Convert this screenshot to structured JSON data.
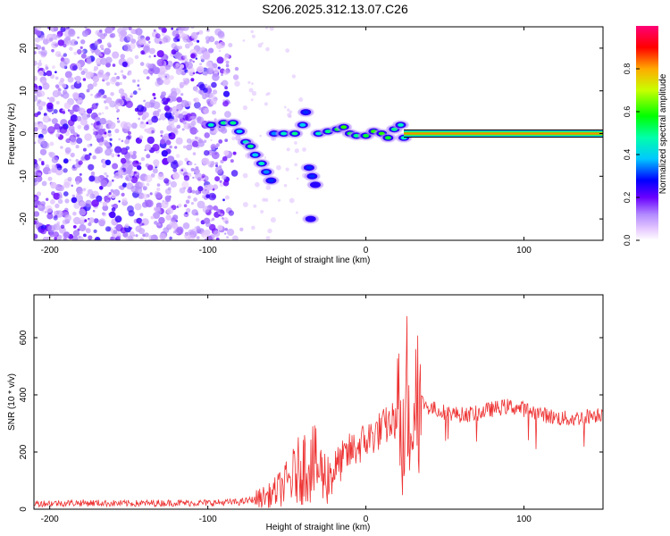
{
  "title": "S206.2025.312.13.07.C26",
  "chart_data": [
    {
      "type": "heatmap",
      "xlabel": "Height of straight line (km)",
      "ylabel": "Frequency (Hz)",
      "xlim": [
        -210,
        150
      ],
      "ylim": [
        -25,
        25
      ],
      "xticks": [
        -200,
        -100,
        0,
        100
      ],
      "yticks": [
        -20,
        -10,
        0,
        10,
        20
      ],
      "xtick_labels": [
        "-200",
        "-100",
        "0",
        "100"
      ],
      "ytick_labels": [
        "-20",
        "-10",
        "0",
        "10",
        "20"
      ],
      "noise_region": [
        -210,
        -78
      ],
      "ridge": [
        {
          "x": -98,
          "y": 2.0,
          "a": 0.45
        },
        {
          "x": -90,
          "y": 2.5,
          "a": 0.5
        },
        {
          "x": -84,
          "y": 2.5,
          "a": 0.5
        },
        {
          "x": -80,
          "y": 0.5,
          "a": 0.4
        },
        {
          "x": -76,
          "y": -2.0,
          "a": 0.45
        },
        {
          "x": -73,
          "y": -3.0,
          "a": 0.5
        },
        {
          "x": -70,
          "y": -5.0,
          "a": 0.4
        },
        {
          "x": -66,
          "y": -7.0,
          "a": 0.45
        },
        {
          "x": -63,
          "y": -9.0,
          "a": 0.35
        },
        {
          "x": -60,
          "y": -11.0,
          "a": 0.3
        },
        {
          "x": -58,
          "y": 0.0,
          "a": 0.35
        },
        {
          "x": -52,
          "y": 0.0,
          "a": 0.45
        },
        {
          "x": -45,
          "y": 0.0,
          "a": 0.5
        },
        {
          "x": -40,
          "y": 2.0,
          "a": 0.4
        },
        {
          "x": -38,
          "y": 5.0,
          "a": 0.3
        },
        {
          "x": -36,
          "y": -8.0,
          "a": 0.3
        },
        {
          "x": -34,
          "y": -10.0,
          "a": 0.3
        },
        {
          "x": -32,
          "y": -12.0,
          "a": 0.25
        },
        {
          "x": -35,
          "y": -20.0,
          "a": 0.25
        },
        {
          "x": -30,
          "y": 0.0,
          "a": 0.45
        },
        {
          "x": -24,
          "y": 0.5,
          "a": 0.5
        },
        {
          "x": -18,
          "y": 1.0,
          "a": 0.55
        },
        {
          "x": -14,
          "y": 1.5,
          "a": 0.6
        },
        {
          "x": -10,
          "y": 0.0,
          "a": 0.55
        },
        {
          "x": -6,
          "y": -0.5,
          "a": 0.5
        },
        {
          "x": 0,
          "y": -0.5,
          "a": 0.55
        },
        {
          "x": 5,
          "y": 0.5,
          "a": 0.6
        },
        {
          "x": 10,
          "y": 0.0,
          "a": 0.6
        },
        {
          "x": 14,
          "y": -1.0,
          "a": 0.55
        },
        {
          "x": 18,
          "y": 1.0,
          "a": 0.5
        },
        {
          "x": 22,
          "y": 2.0,
          "a": 0.45
        },
        {
          "x": 24,
          "y": -1.0,
          "a": 0.45
        }
      ],
      "line": {
        "x_start": 24,
        "x_end": 150,
        "y": 0,
        "a": 0.82
      },
      "colorbar": {
        "label": "Normalized spectral amplitude",
        "range": [
          0,
          1
        ],
        "ticks": [
          0.0,
          0.2,
          0.4,
          0.6,
          0.8
        ],
        "tick_labels": [
          "0.0",
          "0.2",
          "0.4",
          "0.6",
          "0.8"
        ]
      }
    },
    {
      "type": "line",
      "xlabel": "Height of straight line (km)",
      "ylabel": "SNR (10 * v/v)",
      "xlim": [
        -210,
        150
      ],
      "ylim": [
        0,
        750
      ],
      "xticks": [
        -200,
        -100,
        0,
        100
      ],
      "yticks": [
        0,
        200,
        400,
        600
      ],
      "xtick_labels": [
        "-200",
        "-100",
        "0",
        "100"
      ],
      "ytick_labels": [
        "0",
        "200",
        "400",
        "600"
      ],
      "color": "#ee3333",
      "series": [
        {
          "name": "SNR",
          "x": [
            -210,
            -180,
            -150,
            -120,
            -100,
            -80,
            -70,
            -60,
            -50,
            -40,
            -35,
            -30,
            -25,
            -20,
            -15,
            -10,
            -5,
            0,
            5,
            10,
            15,
            20,
            25,
            28,
            30,
            35,
            40,
            50,
            60,
            70,
            80,
            90,
            100,
            110,
            120,
            130,
            140,
            150
          ],
          "y": [
            20,
            22,
            20,
            22,
            22,
            25,
            35,
            50,
            90,
            150,
            170,
            140,
            110,
            140,
            170,
            200,
            220,
            240,
            260,
            280,
            300,
            320,
            340,
            330,
            360,
            380,
            355,
            340,
            330,
            335,
            350,
            360,
            350,
            335,
            320,
            315,
            325,
            335
          ]
        }
      ]
    }
  ]
}
